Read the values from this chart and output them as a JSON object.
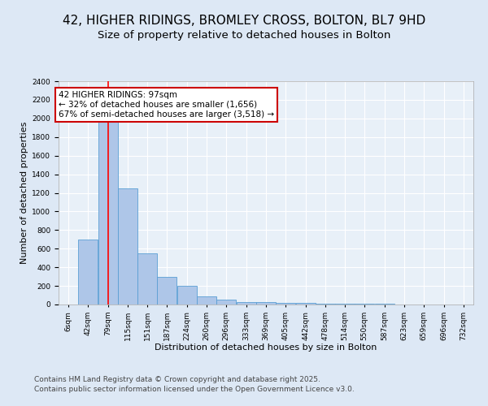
{
  "title": "42, HIGHER RIDINGS, BROMLEY CROSS, BOLTON, BL7 9HD",
  "subtitle": "Size of property relative to detached houses in Bolton",
  "xlabel": "Distribution of detached houses by size in Bolton",
  "ylabel": "Number of detached properties",
  "footer_line1": "Contains HM Land Registry data © Crown copyright and database right 2025.",
  "footer_line2": "Contains public sector information licensed under the Open Government Licence v3.0.",
  "bar_edges": [
    6,
    42,
    79,
    115,
    151,
    187,
    224,
    260,
    296,
    333,
    369,
    405,
    442,
    478,
    514,
    550,
    587,
    623,
    659,
    696,
    732
  ],
  "bar_heights": [
    0,
    700,
    2000,
    1250,
    550,
    300,
    200,
    90,
    50,
    30,
    25,
    20,
    15,
    8,
    5,
    5,
    5,
    3,
    3,
    2,
    0
  ],
  "bar_color": "#aec6e8",
  "bar_edge_color": "#5a9fd4",
  "red_line_x": 97,
  "ylim": [
    0,
    2400
  ],
  "yticks": [
    0,
    200,
    400,
    600,
    800,
    1000,
    1200,
    1400,
    1600,
    1800,
    2000,
    2200,
    2400
  ],
  "annotation_text": "42 HIGHER RIDINGS: 97sqm\n← 32% of detached houses are smaller (1,656)\n67% of semi-detached houses are larger (3,518) →",
  "annotation_box_color": "#ffffff",
  "annotation_box_edge": "#cc0000",
  "bg_color": "#dde8f5",
  "plot_bg_color": "#e8f0f8",
  "grid_color": "#ffffff",
  "title_fontsize": 11,
  "subtitle_fontsize": 9.5,
  "tick_label_fontsize": 6.5,
  "axis_label_fontsize": 8,
  "annotation_fontsize": 7.5,
  "footer_fontsize": 6.5
}
